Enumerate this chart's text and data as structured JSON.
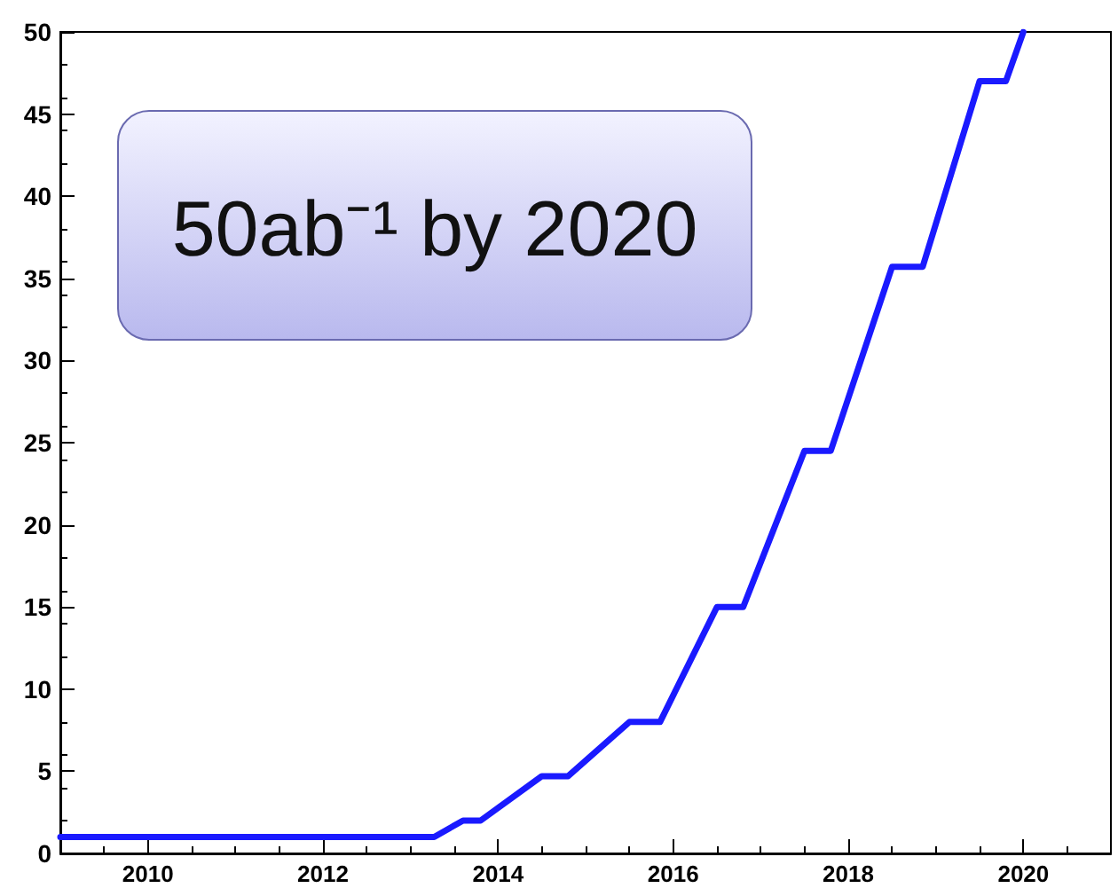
{
  "chart_data": {
    "type": "line",
    "annotations": [
      "50ab⁻¹ by 2020"
    ],
    "x": [
      2009,
      2013.27,
      2013.6,
      2013.8,
      2014.5,
      2014.8,
      2015.5,
      2015.85,
      2016.5,
      2016.8,
      2017.5,
      2017.8,
      2018.5,
      2018.85,
      2019.5,
      2019.8,
      2020
    ],
    "series": [
      {
        "color": "#1a1aff",
        "values": [
          1,
          1,
          2,
          2,
          4.7,
          4.7,
          8,
          8,
          15,
          15,
          24.5,
          24.5,
          35.7,
          35.7,
          47,
          47,
          50
        ]
      }
    ],
    "xlim": [
      2009,
      2021
    ],
    "xticks": [
      2010,
      2012,
      2014,
      2016,
      2018,
      2020
    ],
    "ylim": [
      0,
      50
    ],
    "yticks": [
      0,
      5,
      10,
      15,
      20,
      25,
      30,
      35,
      40,
      45,
      50
    ],
    "grid": false
  }
}
